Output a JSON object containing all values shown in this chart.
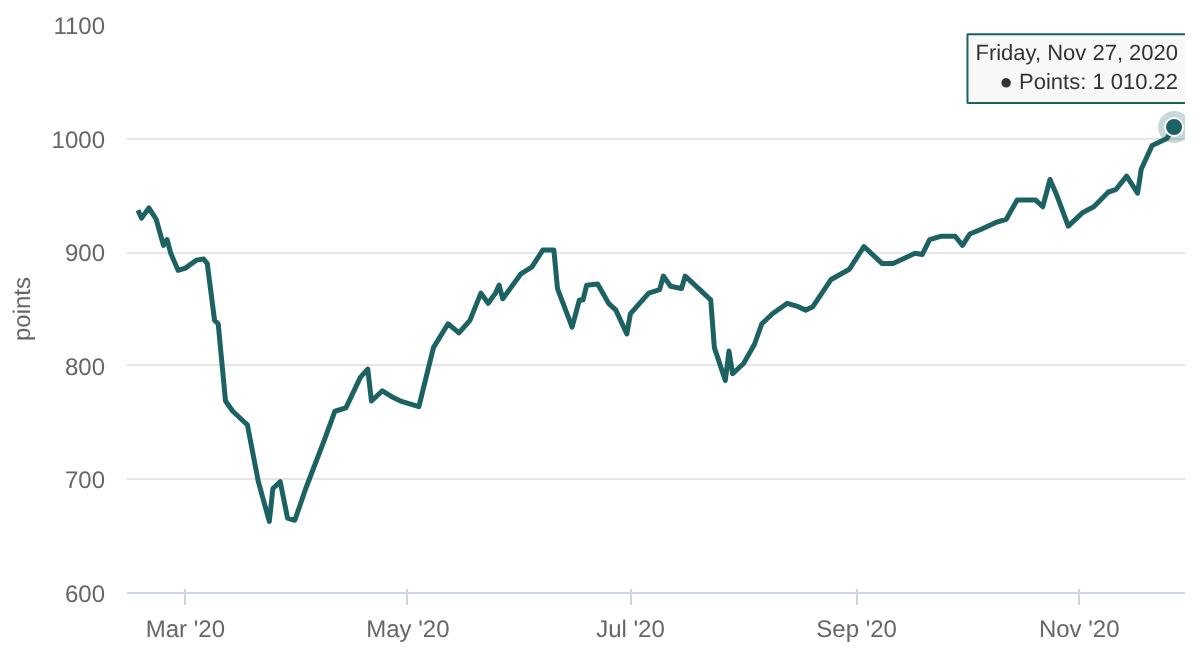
{
  "chart_data": {
    "type": "line",
    "ylabel": "points",
    "xlim": [
      "2020-02-14",
      "2020-11-30"
    ],
    "ylim": [
      600,
      1100
    ],
    "xticks": [
      {
        "value": "2020-03-01",
        "label": "Mar '20"
      },
      {
        "value": "2020-05-01",
        "label": "May '20"
      },
      {
        "value": "2020-07-01",
        "label": "Jul '20"
      },
      {
        "value": "2020-09-01",
        "label": "Sep '20"
      },
      {
        "value": "2020-11-01",
        "label": "Nov '20"
      }
    ],
    "yticks": [
      600,
      700,
      800,
      900,
      1000,
      1100
    ],
    "grid": "y",
    "annotations": [
      {
        "text": "Friday, Nov 27, 2020\n● Points: 1 010.22",
        "x": "2020-11-27",
        "y": 1010.22
      }
    ],
    "series": [
      {
        "color": "#1d6262",
        "line_style": "solid",
        "x": [
          "2020-02-17",
          "2020-02-18",
          "2020-02-20",
          "2020-02-22",
          "2020-02-24",
          "2020-02-25",
          "2020-02-26",
          "2020-02-28",
          "2020-03-01",
          "2020-03-04",
          "2020-03-06",
          "2020-03-07",
          "2020-03-09",
          "2020-03-10",
          "2020-03-12",
          "2020-03-14",
          "2020-03-17",
          "2020-03-18",
          "2020-03-21",
          "2020-03-24",
          "2020-03-25",
          "2020-03-27",
          "2020-03-29",
          "2020-03-31",
          "2020-04-03",
          "2020-04-08",
          "2020-04-11",
          "2020-04-14",
          "2020-04-18",
          "2020-04-20",
          "2020-04-21",
          "2020-04-24",
          "2020-04-27",
          "2020-04-29",
          "2020-05-04",
          "2020-05-08",
          "2020-05-12",
          "2020-05-15",
          "2020-05-18",
          "2020-05-21",
          "2020-05-23",
          "2020-05-25",
          "2020-05-26",
          "2020-05-27",
          "2020-06-01",
          "2020-06-04",
          "2020-06-07",
          "2020-06-10",
          "2020-06-11",
          "2020-06-15",
          "2020-06-17",
          "2020-06-18",
          "2020-06-19",
          "2020-06-22",
          "2020-06-25",
          "2020-06-27",
          "2020-06-30",
          "2020-07-01",
          "2020-07-06",
          "2020-07-09",
          "2020-07-10",
          "2020-07-12",
          "2020-07-15",
          "2020-07-16",
          "2020-07-20",
          "2020-07-23",
          "2020-07-24",
          "2020-07-27",
          "2020-07-28",
          "2020-07-29",
          "2020-08-01",
          "2020-08-04",
          "2020-08-06",
          "2020-08-09",
          "2020-08-13",
          "2020-08-16",
          "2020-08-18",
          "2020-08-20",
          "2020-08-25",
          "2020-08-30",
          "2020-09-03",
          "2020-09-08",
          "2020-09-11",
          "2020-09-17",
          "2020-09-19",
          "2020-09-21",
          "2020-09-24",
          "2020-09-28",
          "2020-09-30",
          "2020-10-02",
          "2020-10-05",
          "2020-10-09",
          "2020-10-12",
          "2020-10-15",
          "2020-10-20",
          "2020-10-22",
          "2020-10-24",
          "2020-10-26",
          "2020-10-29",
          "2020-11-02",
          "2020-11-05",
          "2020-11-09",
          "2020-11-11",
          "2020-11-14",
          "2020-11-17",
          "2020-11-18",
          "2020-11-21",
          "2020-11-25",
          "2020-11-27"
        ],
        "values": [
          937,
          930,
          939,
          929,
          906,
          911,
          899,
          884,
          886,
          893,
          894,
          890,
          840,
          837,
          769,
          760,
          751,
          748,
          698,
          663,
          692,
          698,
          666,
          664,
          692,
          734,
          760,
          763,
          790,
          797,
          769,
          778,
          772,
          769,
          764,
          816,
          837,
          829,
          840,
          864,
          855,
          864,
          871,
          859,
          881,
          887,
          902,
          902,
          868,
          834,
          858,
          858,
          871,
          872,
          855,
          849,
          828,
          846,
          864,
          867,
          879,
          870,
          868,
          879,
          867,
          858,
          816,
          787,
          813,
          793,
          802,
          819,
          837,
          846,
          855,
          852,
          849,
          852,
          876,
          885,
          905,
          890,
          890,
          899,
          898,
          911,
          914,
          914,
          906,
          916,
          920,
          926,
          929,
          946,
          946,
          940,
          964,
          949,
          923,
          935,
          940,
          953,
          955,
          967,
          952,
          973,
          994,
          1000,
          1010.22
        ]
      }
    ]
  }
}
